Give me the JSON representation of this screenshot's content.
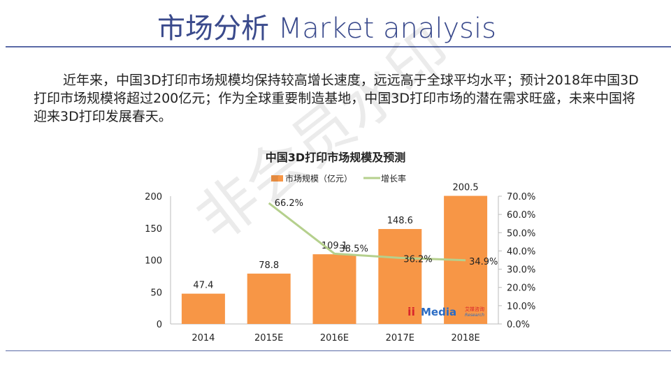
{
  "slide": {
    "title": "市场分析 Market analysis",
    "paragraph": "近年来，中国3D打印市场规模均保持较高增长速度，远远高于全球平均水平；预计2018年中国3D打印市场规模将超过200亿元；作为全球重要制造基地，中国3D打印市场的潜在需求旺盛，未来中国将迎来3D打印发展春天。",
    "watermark": "非会员水印",
    "logo_text": "iiMedia 艾媒咨询 Research"
  },
  "chart_data": {
    "type": "bar",
    "title": "中国3D打印市场规模及预测",
    "categories": [
      "2014",
      "2015E",
      "2016E",
      "2017E",
      "2018E"
    ],
    "series": [
      {
        "name": "市场规模（亿元）",
        "type": "bar",
        "axis": "left",
        "values": [
          47.4,
          78.8,
          109.1,
          148.6,
          200.5
        ],
        "labels": [
          "47.4",
          "78.8",
          "109.1",
          "148.6",
          "200.5"
        ],
        "color": "#f79646"
      },
      {
        "name": "增长率",
        "type": "line",
        "axis": "right",
        "values": [
          null,
          66.2,
          38.5,
          36.2,
          34.9
        ],
        "labels": [
          "",
          "66.2%",
          "38.5%",
          "36.2%",
          "34.9%"
        ],
        "color": "#b5d08d"
      }
    ],
    "y_left": {
      "ylim": [
        0,
        200
      ],
      "ticks": [
        "0",
        "50",
        "100",
        "150",
        "200"
      ]
    },
    "y_right": {
      "ylim": [
        0,
        70
      ],
      "ticks": [
        "0.0%",
        "10.0%",
        "20.0%",
        "30.0%",
        "40.0%",
        "50.0%",
        "60.0%",
        "70.0%"
      ]
    },
    "legend": "top",
    "grid": false
  }
}
